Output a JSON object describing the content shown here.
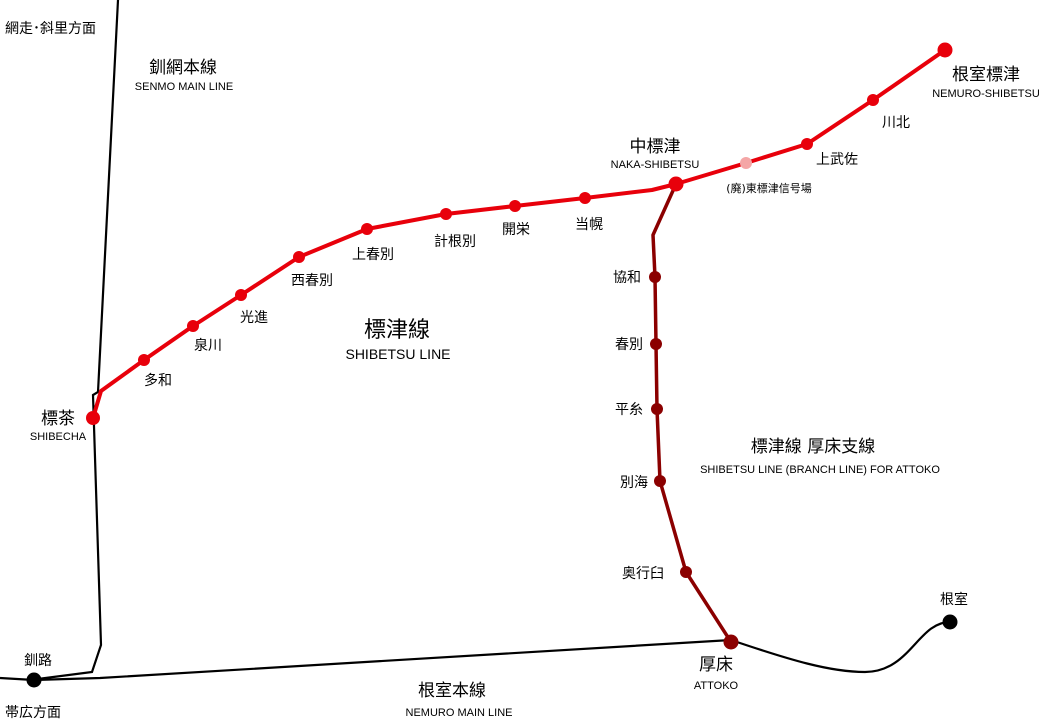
{
  "colors": {
    "shibetsu_line": "#e8000b",
    "branch_line": "#8b0000",
    "disused_station": "#f4a6a6",
    "jr_line": "#000000",
    "background": "#ffffff"
  },
  "directions": {
    "abashiri_shari": "網走･斜里方面",
    "obihiro": "帯広方面"
  },
  "lines": {
    "senmo": {
      "name_ja": "釧網本線",
      "name_en": "SENMO MAIN LINE"
    },
    "shibetsu": {
      "name_ja": "標津線",
      "name_en": "SHIBETSU LINE"
    },
    "branch": {
      "name_ja": "標津線 厚床支線",
      "name_en": "SHIBETSU LINE (BRANCH LINE) FOR ATTOKO"
    },
    "nemuro": {
      "name_ja": "根室本線",
      "name_en": "NEMURO MAIN LINE"
    }
  },
  "stations": {
    "shibecha": {
      "ja": "標茶",
      "en": "SHIBECHA"
    },
    "tawa": {
      "ja": "多和"
    },
    "izumikawa": {
      "ja": "泉川"
    },
    "koshin": {
      "ja": "光進"
    },
    "nishishunbetsu": {
      "ja": "西春別"
    },
    "kamishunbetsu": {
      "ja": "上春別"
    },
    "keineppu": {
      "ja": "計根別"
    },
    "kaiei": {
      "ja": "開栄"
    },
    "toboro": {
      "ja": "当幌"
    },
    "naka_shibetsu": {
      "ja": "中標津",
      "en": "NAKA-SHIBETSU"
    },
    "higashi_signal": {
      "ja": "(廃)東標津信号場"
    },
    "kamimusa": {
      "ja": "上武佐"
    },
    "kawakita": {
      "ja": "川北"
    },
    "nemuro_shibetsu": {
      "ja": "根室標津",
      "en": "NEMURO-SHIBETSU"
    },
    "kyowa": {
      "ja": "協和"
    },
    "shunbetsu": {
      "ja": "春別"
    },
    "heiito": {
      "ja": "平糸"
    },
    "bekkai": {
      "ja": "別海"
    },
    "okuyukiusu": {
      "ja": "奥行臼"
    },
    "attoko": {
      "ja": "厚床",
      "en": "ATTOKO"
    },
    "kushiro": {
      "ja": "釧路"
    },
    "nemuro": {
      "ja": "根室"
    }
  }
}
